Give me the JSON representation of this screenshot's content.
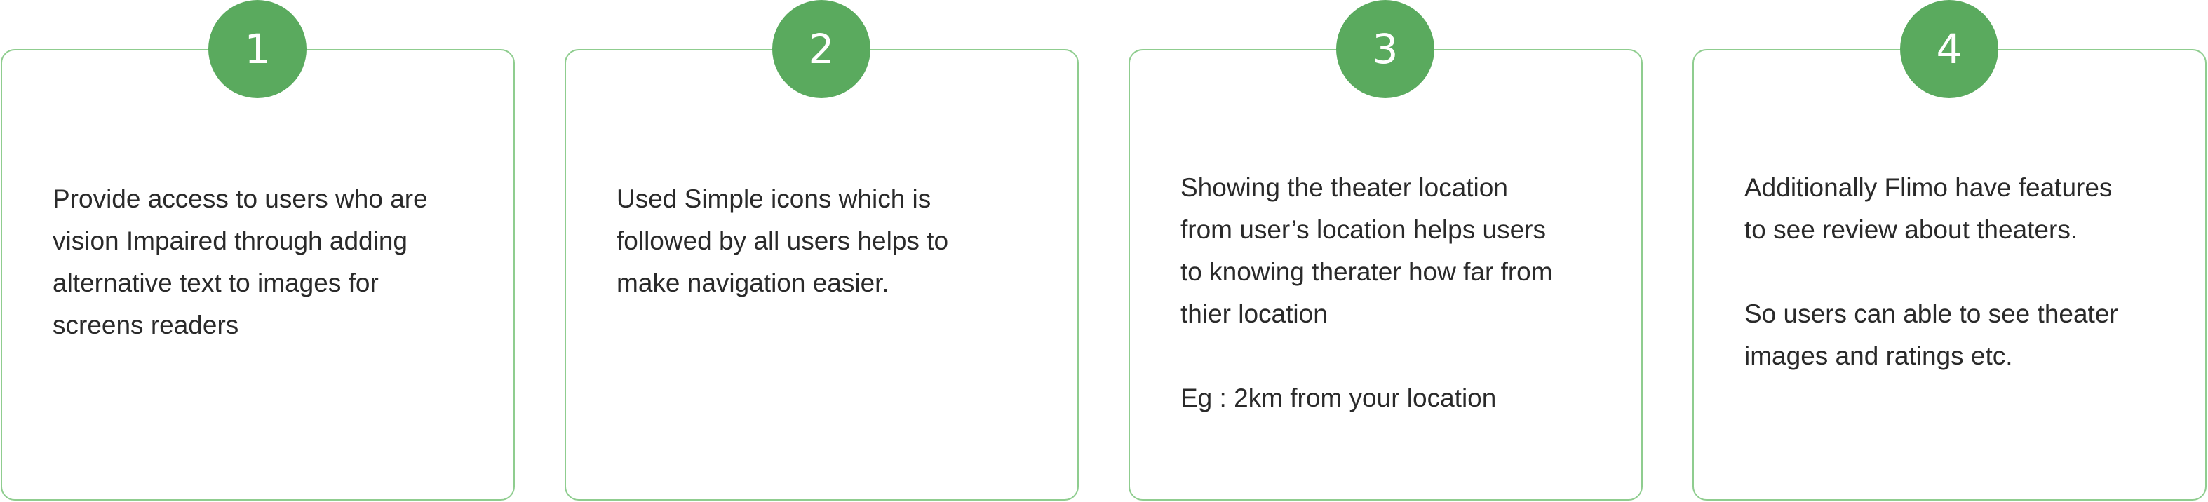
{
  "colors": {
    "accent": "#5aaa5e",
    "card_border": "#8fcd8f",
    "text": "#2a2a2a"
  },
  "cards": [
    {
      "number": "1",
      "paragraphs": [
        "Provide access to users who are\nvision Impaired through adding\nalternative text to images for\nscreens readers"
      ]
    },
    {
      "number": "2",
      "paragraphs": [
        "Used Simple icons which is\nfollowed by all users helps to\nmake navigation easier."
      ]
    },
    {
      "number": "3",
      "paragraphs": [
        "Showing the theater location\nfrom user’s location helps users\nto knowing therater how far from\nthier location",
        "Eg : 2km from your location"
      ]
    },
    {
      "number": "4",
      "paragraphs": [
        "Additionally Flimo have features\nto see review about theaters.",
        "So users can able to see theater\nimages and ratings etc."
      ]
    }
  ]
}
